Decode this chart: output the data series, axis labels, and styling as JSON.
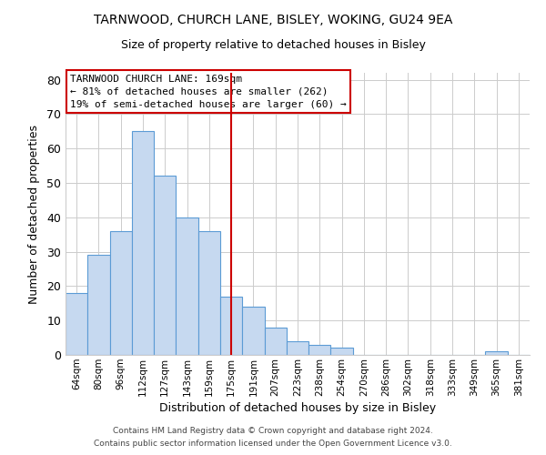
{
  "title": "TARNWOOD, CHURCH LANE, BISLEY, WOKING, GU24 9EA",
  "subtitle": "Size of property relative to detached houses in Bisley",
  "xlabel": "Distribution of detached houses by size in Bisley",
  "ylabel": "Number of detached properties",
  "footer_line1": "Contains HM Land Registry data © Crown copyright and database right 2024.",
  "footer_line2": "Contains public sector information licensed under the Open Government Licence v3.0.",
  "bin_labels": [
    "64sqm",
    "80sqm",
    "96sqm",
    "112sqm",
    "127sqm",
    "143sqm",
    "159sqm",
    "175sqm",
    "191sqm",
    "207sqm",
    "223sqm",
    "238sqm",
    "254sqm",
    "270sqm",
    "286sqm",
    "302sqm",
    "318sqm",
    "333sqm",
    "349sqm",
    "365sqm",
    "381sqm"
  ],
  "bar_heights": [
    18,
    29,
    36,
    65,
    52,
    40,
    36,
    17,
    14,
    8,
    4,
    3,
    2,
    0,
    0,
    0,
    0,
    0,
    0,
    1,
    0
  ],
  "bar_color": "#c6d9f0",
  "bar_edge_color": "#5b9bd5",
  "vline_x": 7,
  "vline_color": "#cc0000",
  "annotation_title": "TARNWOOD CHURCH LANE: 169sqm",
  "annotation_line1": "← 81% of detached houses are smaller (262)",
  "annotation_line2": "19% of semi-detached houses are larger (60) →",
  "ylim": [
    0,
    82
  ],
  "yticks": [
    0,
    10,
    20,
    30,
    40,
    50,
    60,
    70,
    80
  ],
  "background_color": "#ffffff",
  "grid_color": "#cccccc"
}
